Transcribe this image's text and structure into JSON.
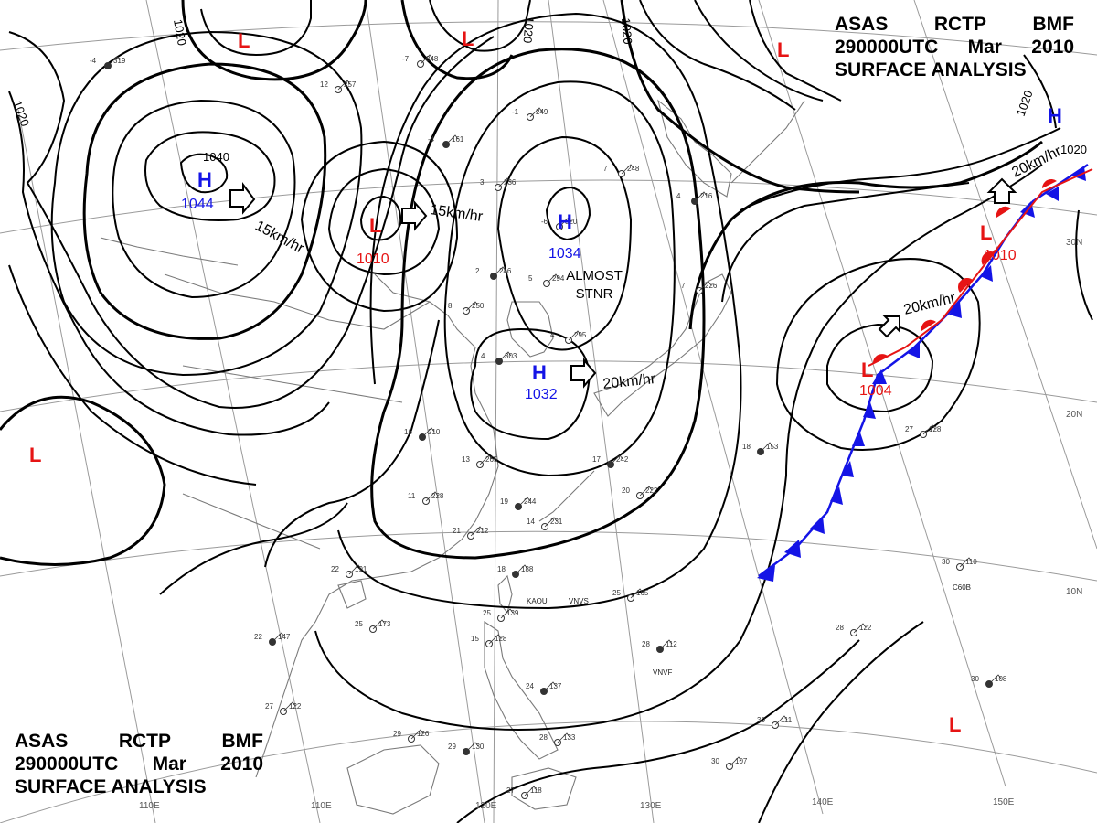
{
  "header": {
    "line1": [
      "ASAS",
      "RCTP",
      "BMF"
    ],
    "line2": [
      "290000UTC",
      "Mar",
      "2010"
    ],
    "line3": "SURFACE ANALYSIS"
  },
  "colors": {
    "high": "#1414e6",
    "low": "#e61414",
    "cold_front": "#1414e6",
    "warm_front": "#e61414",
    "isobar": "#000000",
    "grid": "#9a9a9a",
    "coast": "#7a7a7a"
  },
  "pressure_centers": [
    {
      "type": "H",
      "label": "H",
      "value": "1044",
      "motion": "15km/hr"
    },
    {
      "type": "H",
      "label": "H",
      "value": "1034",
      "motion": "ALMOST STNR"
    },
    {
      "type": "H",
      "label": "H",
      "value": "1032",
      "motion": "20km/hr"
    },
    {
      "type": "L",
      "label": "L",
      "value": "1010",
      "motion": "15km/hr"
    },
    {
      "type": "L",
      "label": "L",
      "value": "1004",
      "motion": "20km/hr"
    },
    {
      "type": "L",
      "label": "L",
      "value": "1010",
      "motion": "20km/hr"
    },
    {
      "type": "H",
      "label": "H",
      "value": "",
      "motion": ""
    },
    {
      "type": "L",
      "label": "L",
      "value": "",
      "motion": ""
    },
    {
      "type": "L",
      "label": "L",
      "value": "",
      "motion": ""
    },
    {
      "type": "L",
      "label": "L",
      "value": "",
      "motion": ""
    },
    {
      "type": "L",
      "label": "L",
      "value": "",
      "motion": ""
    },
    {
      "type": "L",
      "label": "L",
      "value": "",
      "motion": ""
    }
  ],
  "isobar_labels": [
    "1040",
    "1020",
    "1020",
    "1020",
    "1020",
    "1020",
    "1020"
  ],
  "longitude_labels": [
    "110E",
    "120E",
    "130E",
    "140E",
    "150E"
  ],
  "latitude_labels": [
    "30N",
    "20N",
    "10N"
  ],
  "station_ids": [
    "KAOU",
    "VNVS",
    "VNVF",
    "C60B"
  ],
  "stations": [
    {
      "p": "319",
      "t": "-4"
    },
    {
      "p": "257",
      "t": "12"
    },
    {
      "p": "348",
      "t": "-7"
    },
    {
      "p": "161",
      "t": "-4"
    },
    {
      "p": "249",
      "t": "-1"
    },
    {
      "p": "248",
      "t": "7"
    },
    {
      "p": "216",
      "t": "4"
    },
    {
      "p": "236",
      "t": "3"
    },
    {
      "p": "320",
      "t": "-6"
    },
    {
      "p": "246",
      "t": "2"
    },
    {
      "p": "294",
      "t": "5"
    },
    {
      "p": "250",
      "t": "8"
    },
    {
      "p": "303",
      "t": "4"
    },
    {
      "p": "295",
      "t": "4"
    },
    {
      "p": "226",
      "t": "7"
    },
    {
      "p": "210",
      "t": "16"
    },
    {
      "p": "265",
      "t": "13"
    },
    {
      "p": "228",
      "t": "11"
    },
    {
      "p": "244",
      "t": "19"
    },
    {
      "p": "231",
      "t": "14"
    },
    {
      "p": "212",
      "t": "21"
    },
    {
      "p": "188",
      "t": "18"
    },
    {
      "p": "191",
      "t": "22"
    },
    {
      "p": "173",
      "t": "25"
    },
    {
      "p": "147",
      "t": "22"
    },
    {
      "p": "122",
      "t": "27"
    },
    {
      "p": "126",
      "t": "29"
    },
    {
      "p": "130",
      "t": "29"
    },
    {
      "p": "139",
      "t": "25"
    },
    {
      "p": "128",
      "t": "15"
    },
    {
      "p": "137",
      "t": "24"
    },
    {
      "p": "133",
      "t": "28"
    },
    {
      "p": "118",
      "t": "27"
    },
    {
      "p": "112",
      "t": "28"
    },
    {
      "p": "122",
      "t": "28"
    },
    {
      "p": "110",
      "t": "30"
    },
    {
      "p": "108",
      "t": "30"
    },
    {
      "p": "111",
      "t": "30"
    },
    {
      "p": "107",
      "t": "30"
    },
    {
      "p": "153",
      "t": "18"
    },
    {
      "p": "128",
      "t": "27"
    },
    {
      "p": "165",
      "t": "25"
    },
    {
      "p": "242",
      "t": "17"
    },
    {
      "p": "222",
      "t": "20"
    }
  ]
}
